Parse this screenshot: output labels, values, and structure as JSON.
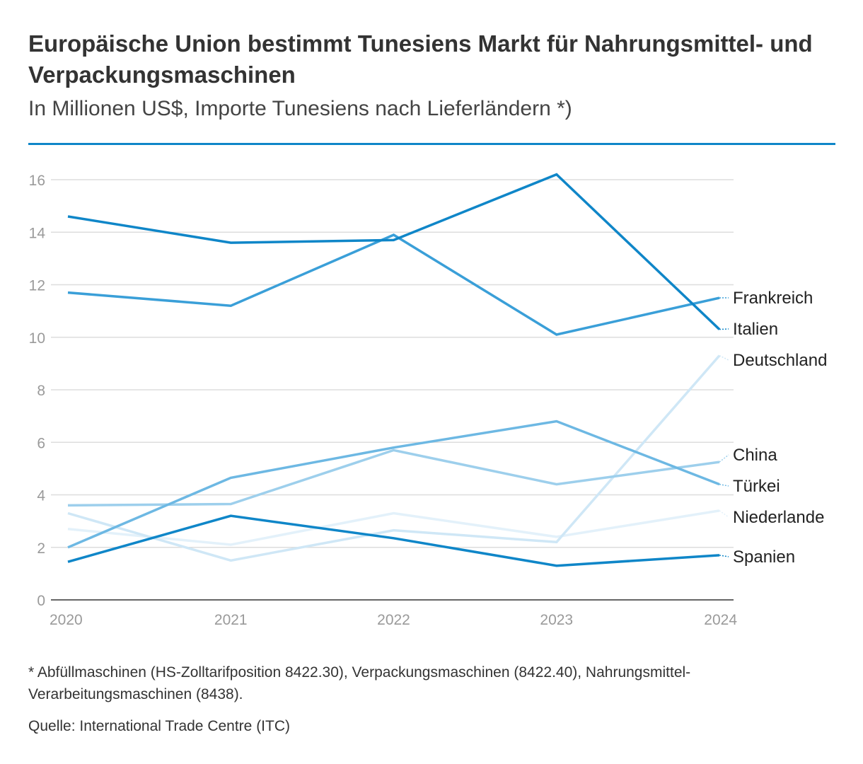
{
  "header": {
    "title": "Europäische Union bestimmt Tunesiens Markt für Nahrungsmittel- und Verpackungsmaschinen",
    "subtitle": "In Millionen US$, Importe Tunesiens nach Lieferländern *)"
  },
  "colors": {
    "rule": "#0f86c8",
    "grid": "#dddddd",
    "axis": "#666666"
  },
  "chart_data": {
    "type": "line",
    "title": "Europäische Union bestimmt Tunesiens Markt für Nahrungsmittel- und Verpackungsmaschinen",
    "subtitle": "In Millionen US$, Importe Tunesiens nach Lieferländern *)",
    "xlabel": "",
    "ylabel": "",
    "x": [
      "2020",
      "2021",
      "2022",
      "2023",
      "2024"
    ],
    "ylim": [
      0,
      16
    ],
    "yticks": [
      0,
      2,
      4,
      6,
      8,
      10,
      12,
      14,
      16
    ],
    "grid": true,
    "legend": "direct-labels-right",
    "series": [
      {
        "name": "Niederlande",
        "color": "#e3f1fa",
        "values": [
          2.7,
          2.1,
          3.3,
          2.4,
          3.4
        ]
      },
      {
        "name": "Deutschland",
        "color": "#cfe7f6",
        "values": [
          3.3,
          1.5,
          2.65,
          2.2,
          9.3
        ]
      },
      {
        "name": "China",
        "color": "#9dcfec",
        "values": [
          3.6,
          3.65,
          5.7,
          4.4,
          5.25
        ]
      },
      {
        "name": "Türkei",
        "color": "#6db8e3",
        "values": [
          2.0,
          4.65,
          5.8,
          6.8,
          4.4
        ]
      },
      {
        "name": "Frankreich",
        "color": "#3a9fd8",
        "values": [
          11.7,
          11.2,
          13.9,
          10.1,
          11.5
        ]
      },
      {
        "name": "Spanien",
        "color": "#0f86c8",
        "values": [
          1.45,
          3.2,
          2.35,
          1.3,
          1.7
        ]
      },
      {
        "name": "Italien",
        "color": "#0f86c8",
        "values": [
          14.6,
          13.6,
          13.7,
          16.2,
          10.3
        ]
      }
    ]
  },
  "footnote": "* Abfüllmaschinen (HS-Zolltarifposition 8422.30), Verpackungsmaschinen (8422.40), Nahrungsmittel-Verarbeitungsmaschinen (8438).",
  "source": "Quelle: International Trade Centre (ITC)"
}
